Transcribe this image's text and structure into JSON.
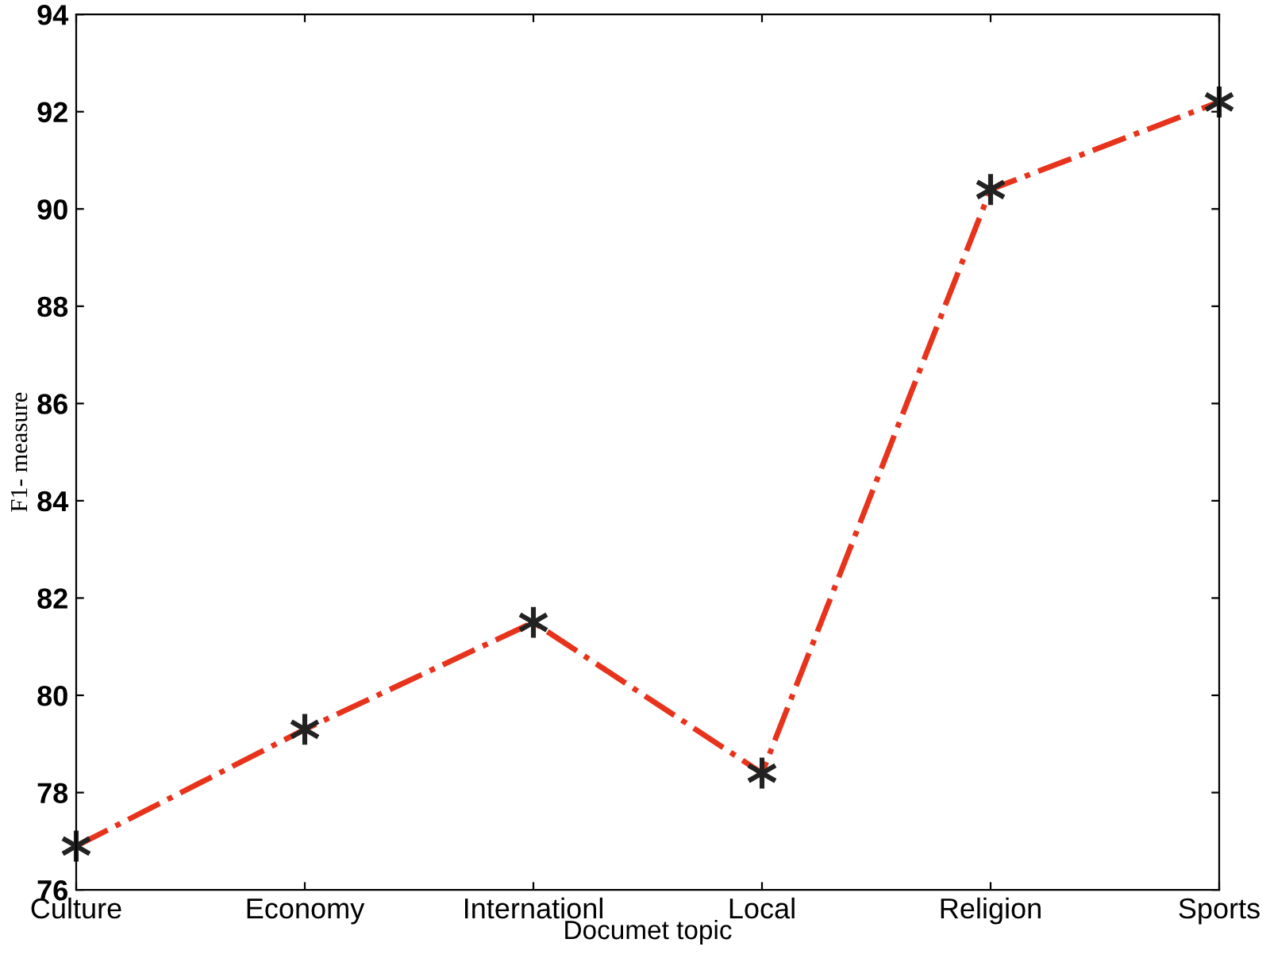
{
  "chart_data": {
    "type": "line",
    "xlabel": "Documet topic",
    "ylabel": "F1- measure",
    "categories": [
      "Culture",
      "Economy",
      "Internationl",
      "Local",
      "Religion",
      "Sports"
    ],
    "series": [
      {
        "color": "#e8331c",
        "values": [
          76.9,
          79.3,
          81.5,
          78.4,
          90.4,
          92.2
        ]
      }
    ],
    "ylim": [
      76,
      94
    ],
    "yticks": [
      76,
      78,
      80,
      82,
      84,
      86,
      88,
      90,
      92,
      94
    ],
    "marker": "cross",
    "line_style": "dashdot",
    "grid": false,
    "legend": false
  }
}
